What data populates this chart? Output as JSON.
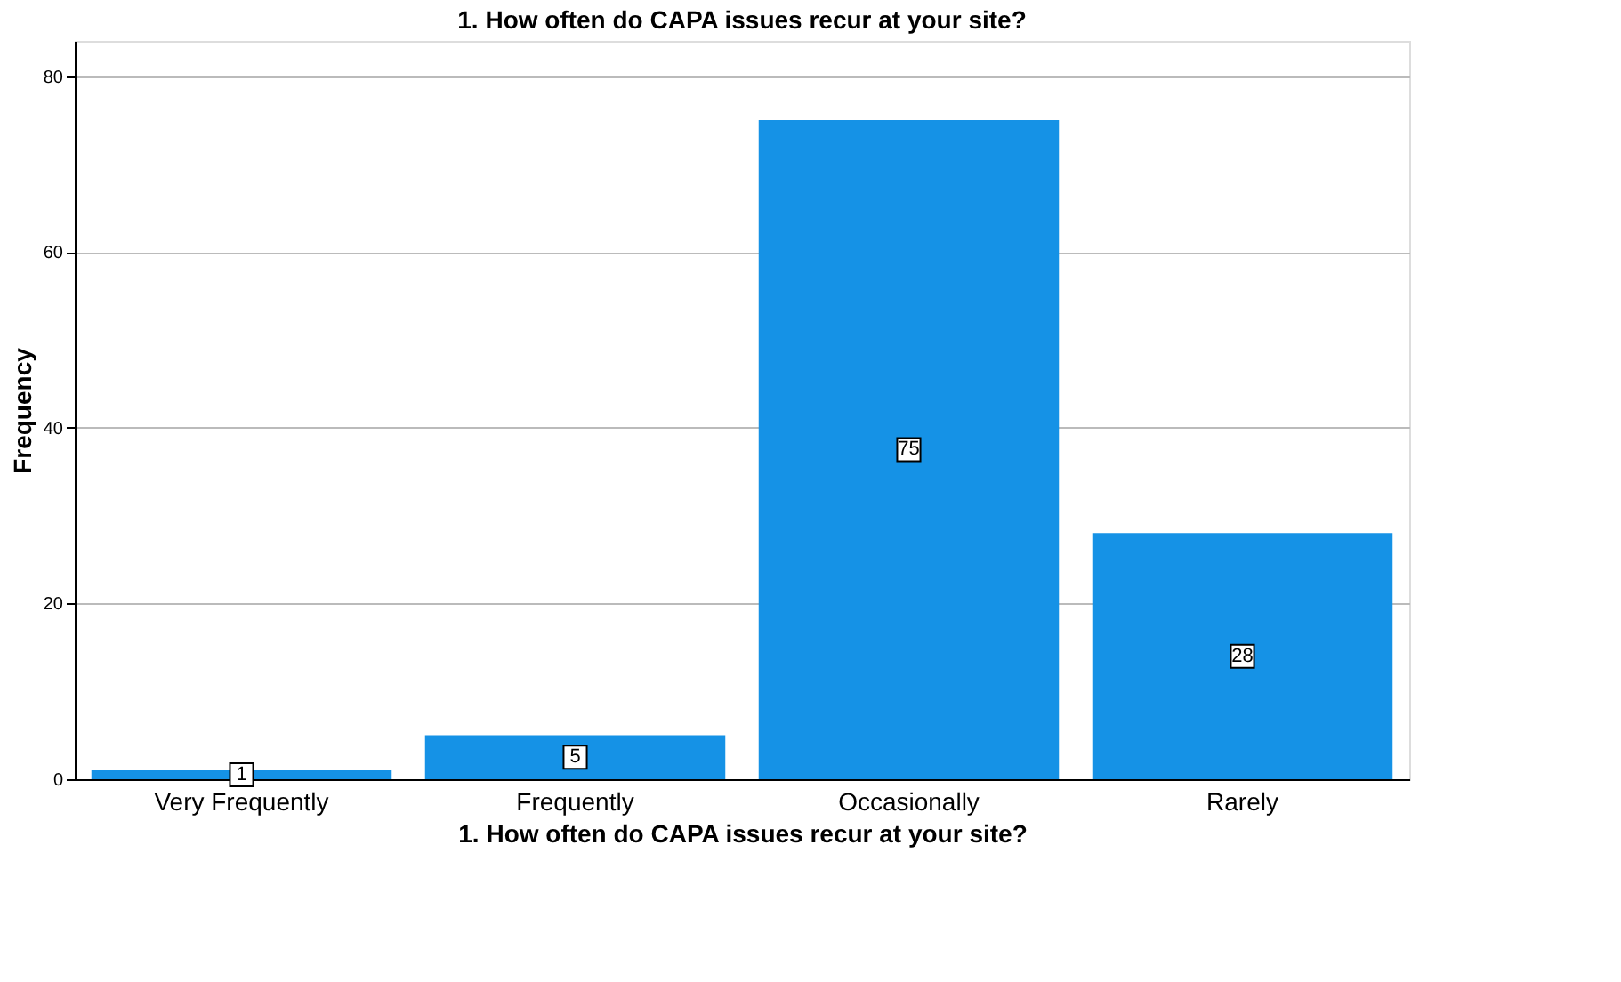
{
  "chart_data": {
    "type": "bar",
    "title": "1. How often do CAPA issues recur at your site?",
    "xlabel": "1. How often do CAPA issues recur at your site?",
    "ylabel": "Frequency",
    "categories": [
      "Very Frequently",
      "Frequently",
      "Occasionally",
      "Rarely"
    ],
    "values": [
      1,
      5,
      75,
      28
    ],
    "color": "#1592e6",
    "ylim": [
      0,
      84
    ],
    "yticks": [
      0,
      20,
      40,
      60,
      80
    ],
    "grid": "y",
    "data_labels": true
  }
}
